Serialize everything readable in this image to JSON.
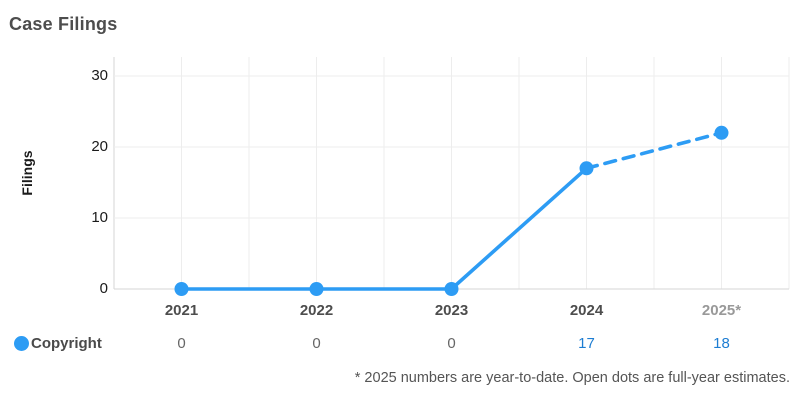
{
  "title": "Case Filings",
  "legend": {
    "label": "Copyright"
  },
  "footnote": "* 2025 numbers are year-to-date. Open dots are full-year estimates.",
  "chart_data": {
    "type": "line",
    "title": "Case Filings",
    "ylabel": "Filings",
    "categories": [
      "2021",
      "2022",
      "2023",
      "2024",
      "2025*"
    ],
    "series": [
      {
        "name": "Copyright",
        "plotted_values": [
          0,
          0,
          0,
          17,
          22
        ],
        "displayed_values": [
          "0",
          "0",
          "0",
          "17",
          "18"
        ],
        "dashed_from_index": 3
      }
    ],
    "yticks": [
      0,
      10,
      20,
      30
    ],
    "ylim": [
      0,
      32.5
    ],
    "grid": true,
    "legend_position": "bottom-left",
    "category_colors": [
      "#4d4d4d",
      "#4d4d4d",
      "#4d4d4d",
      "#4d4d4d",
      "#999999"
    ],
    "value_colors": [
      "#666666",
      "#666666",
      "#666666",
      "#1d7dd2",
      "#1d7dd2"
    ],
    "colors": {
      "line": "#2d9cf4",
      "grid": "#ededed",
      "axis": "#d6d6d6",
      "tick_text": "#1a1a1a",
      "title_text": "#4d4d4d",
      "footnote_text": "#555555"
    }
  }
}
